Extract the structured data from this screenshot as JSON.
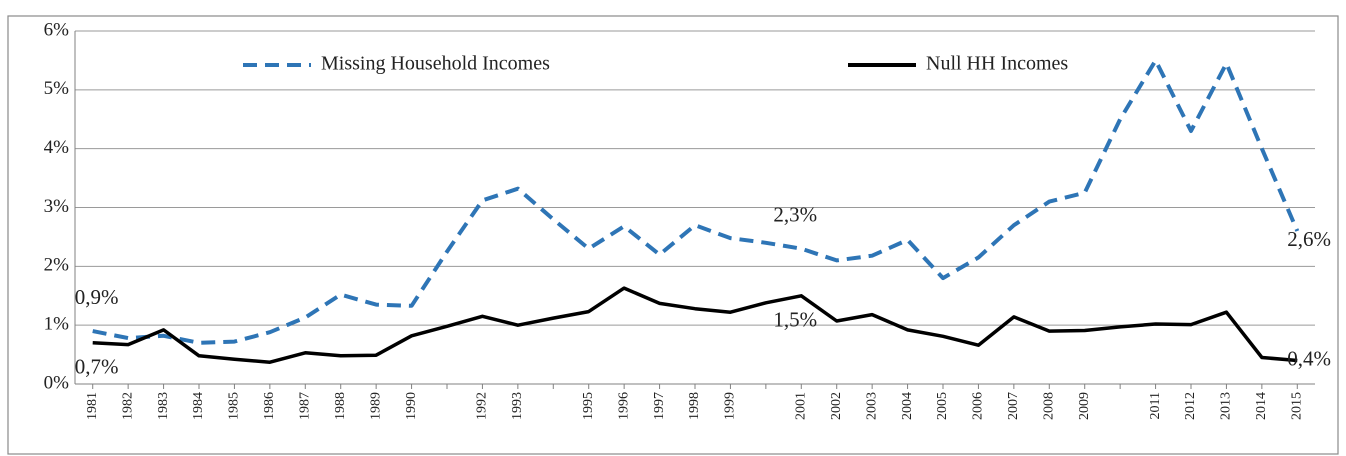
{
  "chart_data": {
    "type": "line",
    "categories": [
      "1981",
      "1982",
      "1983",
      "1984",
      "1985",
      "1986",
      "1987",
      "1988",
      "1989",
      "1990",
      null,
      "1992",
      "1993",
      null,
      "1995",
      "1996",
      "1997",
      "1998",
      "1999",
      null,
      "2001",
      "2002",
      "2003",
      "2004",
      "2005",
      "2006",
      "2007",
      "2008",
      "2009",
      null,
      "2011",
      "2012",
      "2013",
      "2014",
      "2015"
    ],
    "series": [
      {
        "name": "Missing Household Incomes",
        "color": "#2e75b6",
        "dashed": true,
        "values": [
          0.9,
          0.78,
          0.82,
          0.7,
          0.72,
          0.88,
          1.13,
          1.52,
          1.35,
          1.33,
          2.25,
          3.12,
          3.32,
          2.8,
          2.3,
          2.68,
          2.2,
          2.7,
          2.48,
          2.4,
          2.3,
          2.1,
          2.18,
          2.45,
          1.8,
          2.15,
          2.7,
          3.1,
          3.25,
          4.5,
          5.5,
          4.3,
          5.45,
          4.0,
          2.6
        ],
        "value_labels": [
          "0,9%",
          null,
          null,
          null,
          null,
          null,
          null,
          null,
          null,
          null,
          null,
          null,
          null,
          null,
          null,
          null,
          null,
          null,
          null,
          null,
          "2,3%",
          null,
          null,
          null,
          null,
          null,
          null,
          null,
          null,
          null,
          null,
          null,
          null,
          null,
          "2,6%"
        ]
      },
      {
        "name": "Null HH Incomes",
        "color": "#000000",
        "dashed": false,
        "values": [
          0.7,
          0.67,
          0.92,
          0.48,
          0.42,
          0.37,
          0.53,
          0.48,
          0.49,
          0.82,
          0.98,
          1.15,
          1.0,
          1.12,
          1.23,
          1.63,
          1.37,
          1.28,
          1.22,
          1.38,
          1.5,
          1.07,
          1.18,
          0.92,
          0.81,
          0.66,
          1.14,
          0.9,
          0.91,
          0.97,
          1.02,
          1.01,
          1.22,
          0.45,
          0.4
        ],
        "value_labels": [
          "0,7%",
          null,
          null,
          null,
          null,
          null,
          null,
          null,
          null,
          null,
          null,
          null,
          null,
          null,
          null,
          null,
          null,
          null,
          null,
          null,
          "1,5%",
          null,
          null,
          null,
          null,
          null,
          null,
          null,
          null,
          null,
          null,
          null,
          null,
          null,
          "0,4%"
        ]
      }
    ],
    "ylim": [
      0,
      6
    ],
    "yticks": [
      {
        "value": 0,
        "label": "0%"
      },
      {
        "value": 1,
        "label": "1%"
      },
      {
        "value": 2,
        "label": "2%"
      },
      {
        "value": 3,
        "label": "3%"
      },
      {
        "value": 4,
        "label": "4%"
      },
      {
        "value": 5,
        "label": "5%"
      },
      {
        "value": 6,
        "label": "6%"
      }
    ],
    "grid": true,
    "legend": "top"
  }
}
